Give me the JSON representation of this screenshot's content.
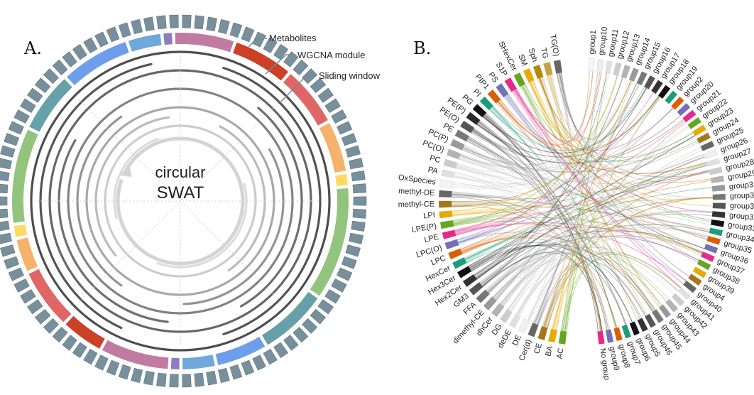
{
  "panel_a": {
    "letter": "A.",
    "center_line1": "circular",
    "center_line2": "SWAT",
    "callouts": [
      "Metabolites",
      "WGCNA module",
      "Sliding window"
    ],
    "module_ring": [
      {
        "color": "#93c47d",
        "len": 11
      },
      {
        "color": "#66a0a8",
        "len": 7
      },
      {
        "color": "#6d9eeb",
        "len": 8
      },
      {
        "color": "#6fa8dc",
        "len": 4
      },
      {
        "color": "#8e7cc3",
        "len": 1.3
      },
      {
        "color": "#c27ba0",
        "len": 7
      },
      {
        "color": "#cc4125",
        "len": 7
      },
      {
        "color": "#e06666",
        "len": 7
      },
      {
        "color": "#f6b26b",
        "len": 6
      },
      {
        "color": "#ffd966",
        "len": 1.6
      },
      {
        "color": "#93c47d",
        "len": 13
      },
      {
        "color": "#66a0a8",
        "len": 8
      },
      {
        "color": "#6d9eeb",
        "len": 6
      },
      {
        "color": "#6fa8dc",
        "len": 4
      },
      {
        "color": "#8e7cc3",
        "len": 1.3
      },
      {
        "color": "#c27ba0",
        "len": 8
      },
      {
        "color": "#cc4125",
        "len": 5
      },
      {
        "color": "#e06666",
        "len": 7
      },
      {
        "color": "#f6b26b",
        "len": 4
      },
      {
        "color": "#ffd966",
        "len": 1.6
      }
    ],
    "metabolite_count": 90,
    "metabolite_color": "#78909c",
    "window_rings": [
      {
        "color": "#4d4d4d",
        "arcs": [
          [
            0,
            360
          ]
        ]
      },
      {
        "color": "#555555",
        "arcs": [
          [
            18,
            162
          ],
          [
            205,
            348
          ]
        ]
      },
      {
        "color": "#666666",
        "arcs": [
          [
            0,
            360
          ]
        ]
      },
      {
        "color": "#6e6e6e",
        "arcs": [
          [
            40,
            150
          ],
          [
            186,
            300
          ]
        ]
      },
      {
        "color": "#828282",
        "arcs": [
          [
            0,
            360
          ]
        ]
      },
      {
        "color": "#949494",
        "arcs": [
          [
            60,
            178
          ],
          [
            215,
            325
          ]
        ]
      },
      {
        "color": "#a8a8a8",
        "arcs": [
          [
            0,
            360
          ]
        ]
      },
      {
        "color": "#bbbbbb",
        "arcs": [
          [
            28,
            145
          ],
          [
            230,
            352
          ]
        ]
      },
      {
        "color": "#cccccc",
        "arcs": [
          [
            0,
            360
          ]
        ]
      },
      {
        "color": "#dcdcdc",
        "arcs": [
          [
            75,
            200
          ],
          [
            255,
            340
          ]
        ]
      }
    ]
  },
  "panel_b": {
    "letter": "B.",
    "left_nodes": [
      {
        "label": "TG(O)",
        "color": "#666666"
      },
      {
        "label": "TG",
        "color": "#c8a24a"
      },
      {
        "label": "Sph",
        "color": "#b8860b"
      },
      {
        "label": "SM",
        "color": "#e6ab02"
      },
      {
        "label": "SHexCer",
        "color": "#66a61e"
      },
      {
        "label": "S1P",
        "color": "#e7298a"
      },
      {
        "label": "PS",
        "color": "#7570b3"
      },
      {
        "label": "PIP1",
        "color": "#d95f02"
      },
      {
        "label": "PI",
        "color": "#1b9e77"
      },
      {
        "label": "PG",
        "color": "#111111"
      },
      {
        "label": "PE(P)",
        "color": "#2b2b2b"
      },
      {
        "label": "PE(O)",
        "color": "#555555"
      },
      {
        "label": "PE",
        "color": "#777777"
      },
      {
        "label": "PC(P)",
        "color": "#999999"
      },
      {
        "label": "PC(O)",
        "color": "#b3b3b3"
      },
      {
        "label": "PC",
        "color": "#cccccc"
      },
      {
        "label": "PA",
        "color": "#e0e0e0"
      },
      {
        "label": "OxSpecies",
        "color": "#f3f3f3"
      },
      {
        "label": "methyl-DE",
        "color": "#666666"
      },
      {
        "label": "methyl-CE",
        "color": "#a6761d"
      },
      {
        "label": "LPI",
        "color": "#e6ab02"
      },
      {
        "label": "LPE(P)",
        "color": "#66a61e"
      },
      {
        "label": "LPE",
        "color": "#e7298a"
      },
      {
        "label": "LPC(O)",
        "color": "#7570b3"
      },
      {
        "label": "LPC",
        "color": "#d95f02"
      },
      {
        "label": "HexCer",
        "color": "#1b9e77"
      },
      {
        "label": "Hex3Cer",
        "color": "#111111"
      },
      {
        "label": "Hex2Cer",
        "color": "#333333"
      },
      {
        "label": "GM3",
        "color": "#555555"
      },
      {
        "label": "FFA",
        "color": "#777777"
      },
      {
        "label": "dimethyl-CE",
        "color": "#999999"
      },
      {
        "label": "dhCer",
        "color": "#b3b3b3"
      },
      {
        "label": "DG",
        "color": "#cccccc"
      },
      {
        "label": "deDE",
        "color": "#e0e0e0"
      },
      {
        "label": "DE",
        "color": "#f0f0f0"
      },
      {
        "label": "Cer(d)",
        "color": "#666666"
      },
      {
        "label": "CE",
        "color": "#a6761d"
      },
      {
        "label": "BA",
        "color": "#e6ab02"
      },
      {
        "label": "AC",
        "color": "#66a61e"
      }
    ],
    "right_nodes": [
      {
        "label": "No group",
        "color": "#e7298a"
      },
      {
        "label": "group9",
        "color": "#7570b3"
      },
      {
        "label": "group8",
        "color": "#d95f02"
      },
      {
        "label": "group7",
        "color": "#1b9e77"
      },
      {
        "label": "group6",
        "color": "#111111"
      },
      {
        "label": "group5",
        "color": "#333333"
      },
      {
        "label": "group46",
        "color": "#555555"
      },
      {
        "label": "group45",
        "color": "#777777"
      },
      {
        "label": "group44",
        "color": "#999999"
      },
      {
        "label": "group43",
        "color": "#b3b3b3"
      },
      {
        "label": "group42",
        "color": "#cccccc"
      },
      {
        "label": "group41",
        "color": "#e0e0e0"
      },
      {
        "label": "group40",
        "color": "#666666"
      },
      {
        "label": "group4",
        "color": "#a6761d"
      },
      {
        "label": "group39",
        "color": "#e6ab02"
      },
      {
        "label": "group38",
        "color": "#66a61e"
      },
      {
        "label": "group37",
        "color": "#e7298a"
      },
      {
        "label": "group36",
        "color": "#7570b3"
      },
      {
        "label": "group35",
        "color": "#d95f02"
      },
      {
        "label": "group34",
        "color": "#1b9e77"
      },
      {
        "label": "group33",
        "color": "#111111"
      },
      {
        "label": "group32",
        "color": "#333333"
      },
      {
        "label": "group31",
        "color": "#555555"
      },
      {
        "label": "group30",
        "color": "#777777"
      },
      {
        "label": "group3",
        "color": "#999999"
      },
      {
        "label": "group29",
        "color": "#b3b3b3"
      },
      {
        "label": "group28",
        "color": "#cccccc"
      },
      {
        "label": "group27",
        "color": "#e0e0e0"
      },
      {
        "label": "group26",
        "color": "#f0f0f0"
      },
      {
        "label": "group25",
        "color": "#666666"
      },
      {
        "label": "group24",
        "color": "#a6761d"
      },
      {
        "label": "group23",
        "color": "#e6ab02"
      },
      {
        "label": "group22",
        "color": "#66a61e"
      },
      {
        "label": "group21",
        "color": "#e7298a"
      },
      {
        "label": "group20",
        "color": "#7570b3"
      },
      {
        "label": "group2",
        "color": "#d95f02"
      },
      {
        "label": "group19",
        "color": "#1b9e77"
      },
      {
        "label": "group18",
        "color": "#111111"
      },
      {
        "label": "group17",
        "color": "#333333"
      },
      {
        "label": "group16",
        "color": "#555555"
      },
      {
        "label": "group15",
        "color": "#777777"
      },
      {
        "label": "group14",
        "color": "#999999"
      },
      {
        "label": "group13",
        "color": "#b3b3b3"
      },
      {
        "label": "group12",
        "color": "#cccccc"
      },
      {
        "label": "group11",
        "color": "#e0e0e0"
      },
      {
        "label": "group10",
        "color": "#eeeeee"
      },
      {
        "label": "group1",
        "color": "#f5f5f5"
      }
    ]
  }
}
